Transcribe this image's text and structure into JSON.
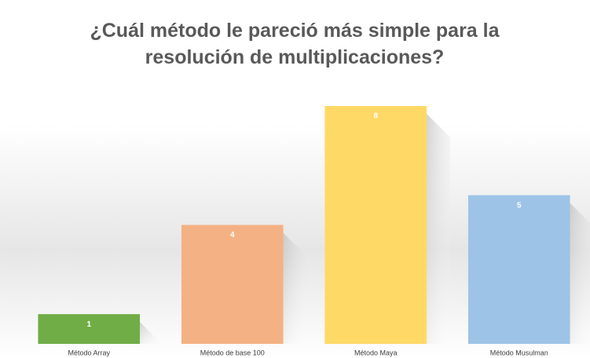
{
  "chart_data": {
    "type": "bar",
    "title": "¿Cuál método le pareció más simple para la resolución de multiplicaciones?",
    "categories": [
      "Método Array",
      "Método de base 100",
      "Método Maya",
      "Método Musulman"
    ],
    "values": [
      1,
      4,
      8,
      5
    ],
    "colors": [
      "#70ad47",
      "#f4b183",
      "#ffd966",
      "#9dc3e6"
    ]
  }
}
